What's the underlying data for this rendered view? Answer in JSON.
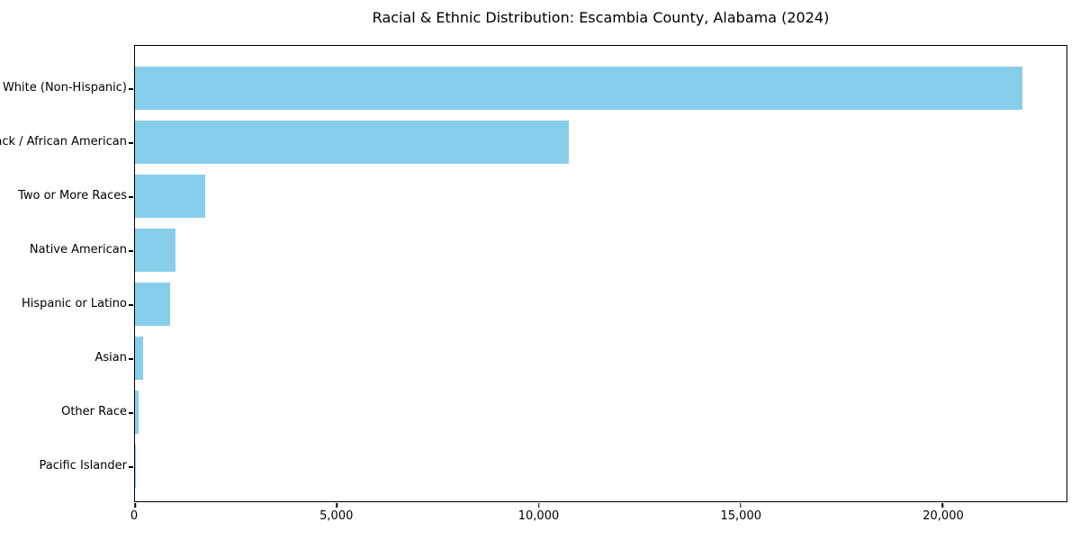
{
  "figure": {
    "background": "#ffffff",
    "text_color": "#000000"
  },
  "chart_data": {
    "type": "bar",
    "orientation": "horizontal",
    "title": "Racial & Ethnic Distribution: Escambia County, Alabama (2024)",
    "categories": [
      "White (Non-Hispanic)",
      "Black / African American",
      "Two or More Races",
      "Native American",
      "Hispanic or Latino",
      "Asian",
      "Other Race",
      "Pacific Islander"
    ],
    "values": [
      21970,
      10750,
      1740,
      1000,
      870,
      200,
      100,
      10
    ],
    "bar_color": "#87CEEB",
    "xlabel": "",
    "ylabel": "",
    "xlim": [
      0,
      23070
    ],
    "xticks": [
      0,
      5000,
      10000,
      15000,
      20000
    ],
    "xtick_labels": [
      "0",
      "5,000",
      "10,000",
      "15,000",
      "20,000"
    ],
    "grid": false,
    "legend_position": "none"
  }
}
